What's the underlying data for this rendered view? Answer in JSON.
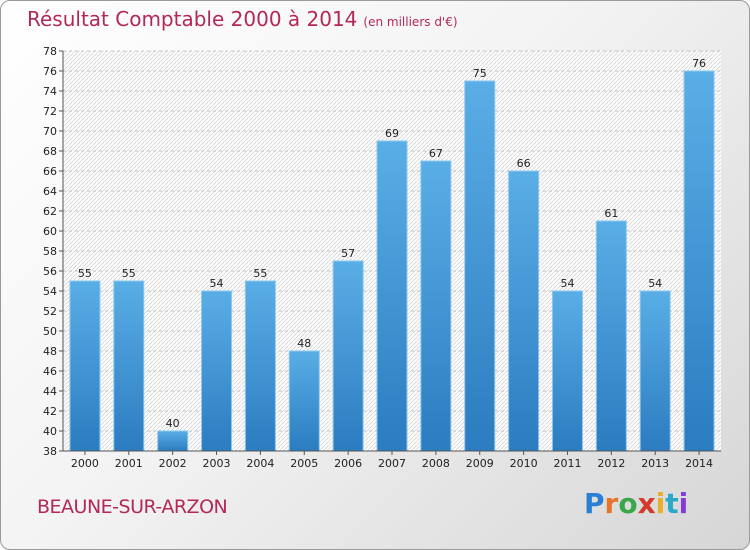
{
  "header": {
    "title": "Résultat Comptable 2000 à 2014",
    "subtitle": "(en milliers d'€)"
  },
  "footer": {
    "town": "BEAUNE-SUR-ARZON",
    "logo_letters": [
      "P",
      "r",
      "o",
      "x",
      "i",
      "t",
      "i"
    ],
    "logo_colors": [
      "#2a7fd4",
      "#e8732a",
      "#3aa84a",
      "#d43a2a",
      "#e8b02a",
      "#2aa8c8",
      "#8a3ad4"
    ]
  },
  "colors": {
    "bar_top": "#5aaee6",
    "bar_bottom": "#2b7cc0",
    "accent": "#b3285a"
  },
  "chart_data": {
    "type": "bar",
    "categories": [
      "2000",
      "2001",
      "2002",
      "2003",
      "2004",
      "2005",
      "2006",
      "2007",
      "2008",
      "2009",
      "2010",
      "2011",
      "2012",
      "2013",
      "2014"
    ],
    "values": [
      55,
      55,
      40,
      54,
      55,
      48,
      57,
      69,
      67,
      75,
      66,
      54,
      61,
      54,
      76
    ],
    "ylim": [
      38,
      78
    ],
    "yticks": [
      38,
      40,
      42,
      44,
      46,
      48,
      50,
      52,
      54,
      56,
      58,
      60,
      62,
      64,
      66,
      68,
      70,
      72,
      74,
      76,
      78
    ],
    "grid": true
  }
}
